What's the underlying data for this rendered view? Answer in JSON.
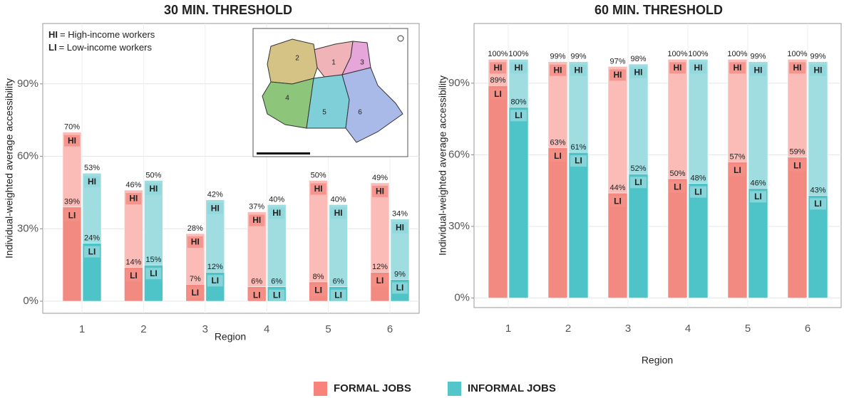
{
  "legend": [
    {
      "name": "FORMAL JOBS",
      "color": "#f8766d"
    },
    {
      "name": "INFORMAL JOBS",
      "color": "#00bfc4"
    }
  ],
  "chart_data": [
    {
      "type": "bar",
      "title": "30 MIN. THRESHOLD",
      "x_label": "Region",
      "y_label": "Individual-weighted average accessibility",
      "categories": [
        "1",
        "2",
        "3",
        "4",
        "5",
        "6"
      ],
      "ylim": [
        -5,
        115
      ],
      "yticks": [
        {
          "value": 0,
          "label": "0%"
        },
        {
          "value": 30,
          "label": "30%"
        },
        {
          "value": 60,
          "label": "60%"
        },
        {
          "value": 90,
          "label": "90%"
        }
      ],
      "grid": true,
      "annotations": [
        {
          "key": "HI",
          "text": "= High-income workers"
        },
        {
          "key": "LI",
          "text": "= Low-income workers"
        }
      ],
      "map": {
        "labels": [
          "1",
          "2",
          "3",
          "4",
          "5",
          "6"
        ]
      },
      "series": [
        {
          "name": "HI",
          "values_formal": [
            70,
            46,
            28,
            37,
            50,
            49
          ],
          "value_labels_formal": [
            "70%",
            "46%",
            "28%",
            "37%",
            "50%",
            "49%"
          ],
          "values_informal": [
            53,
            50,
            42,
            40,
            40,
            34
          ],
          "value_labels_informal": [
            "53%",
            "50%",
            "42%",
            "40%",
            "40%",
            "34%"
          ]
        },
        {
          "name": "LI",
          "values_formal": [
            39,
            14,
            7,
            6,
            8,
            12
          ],
          "value_labels_formal": [
            "39%",
            "14%",
            "7%",
            "6%",
            "8%",
            "12%"
          ],
          "values_informal": [
            24,
            15,
            12,
            6,
            6,
            9
          ],
          "value_labels_informal": [
            "24%",
            "15%",
            "12%",
            "6%",
            "6%",
            "9%"
          ]
        }
      ]
    },
    {
      "type": "bar",
      "title": "60 MIN. THRESHOLD",
      "x_label": "Region",
      "y_label": "Individual-weighted average accessibility",
      "categories": [
        "1",
        "2",
        "3",
        "4",
        "5",
        "6"
      ],
      "ylim": [
        -4,
        115
      ],
      "yticks": [
        {
          "value": 0,
          "label": "0%"
        },
        {
          "value": 30,
          "label": "30%"
        },
        {
          "value": 60,
          "label": "60%"
        },
        {
          "value": 90,
          "label": "90%"
        }
      ],
      "grid": true,
      "series": [
        {
          "name": "HI",
          "values_formal": [
            100,
            99,
            97,
            100,
            100,
            100
          ],
          "value_labels_formal": [
            "100%",
            "99%",
            "97%",
            "100%",
            "100%",
            "100%"
          ],
          "values_informal": [
            100,
            99,
            98,
            100,
            99,
            99
          ],
          "value_labels_informal": [
            "100%",
            "99%",
            "98%",
            "100%",
            "99%",
            "99%"
          ]
        },
        {
          "name": "LI",
          "values_formal": [
            89,
            63,
            44,
            50,
            57,
            59
          ],
          "value_labels_formal": [
            "89%",
            "63%",
            "44%",
            "50%",
            "57%",
            "59%"
          ],
          "values_informal": [
            80,
            61,
            52,
            48,
            46,
            43
          ],
          "value_labels_informal": [
            "80%",
            "61%",
            "52%",
            "48%",
            "46%",
            "43%"
          ]
        }
      ]
    }
  ]
}
